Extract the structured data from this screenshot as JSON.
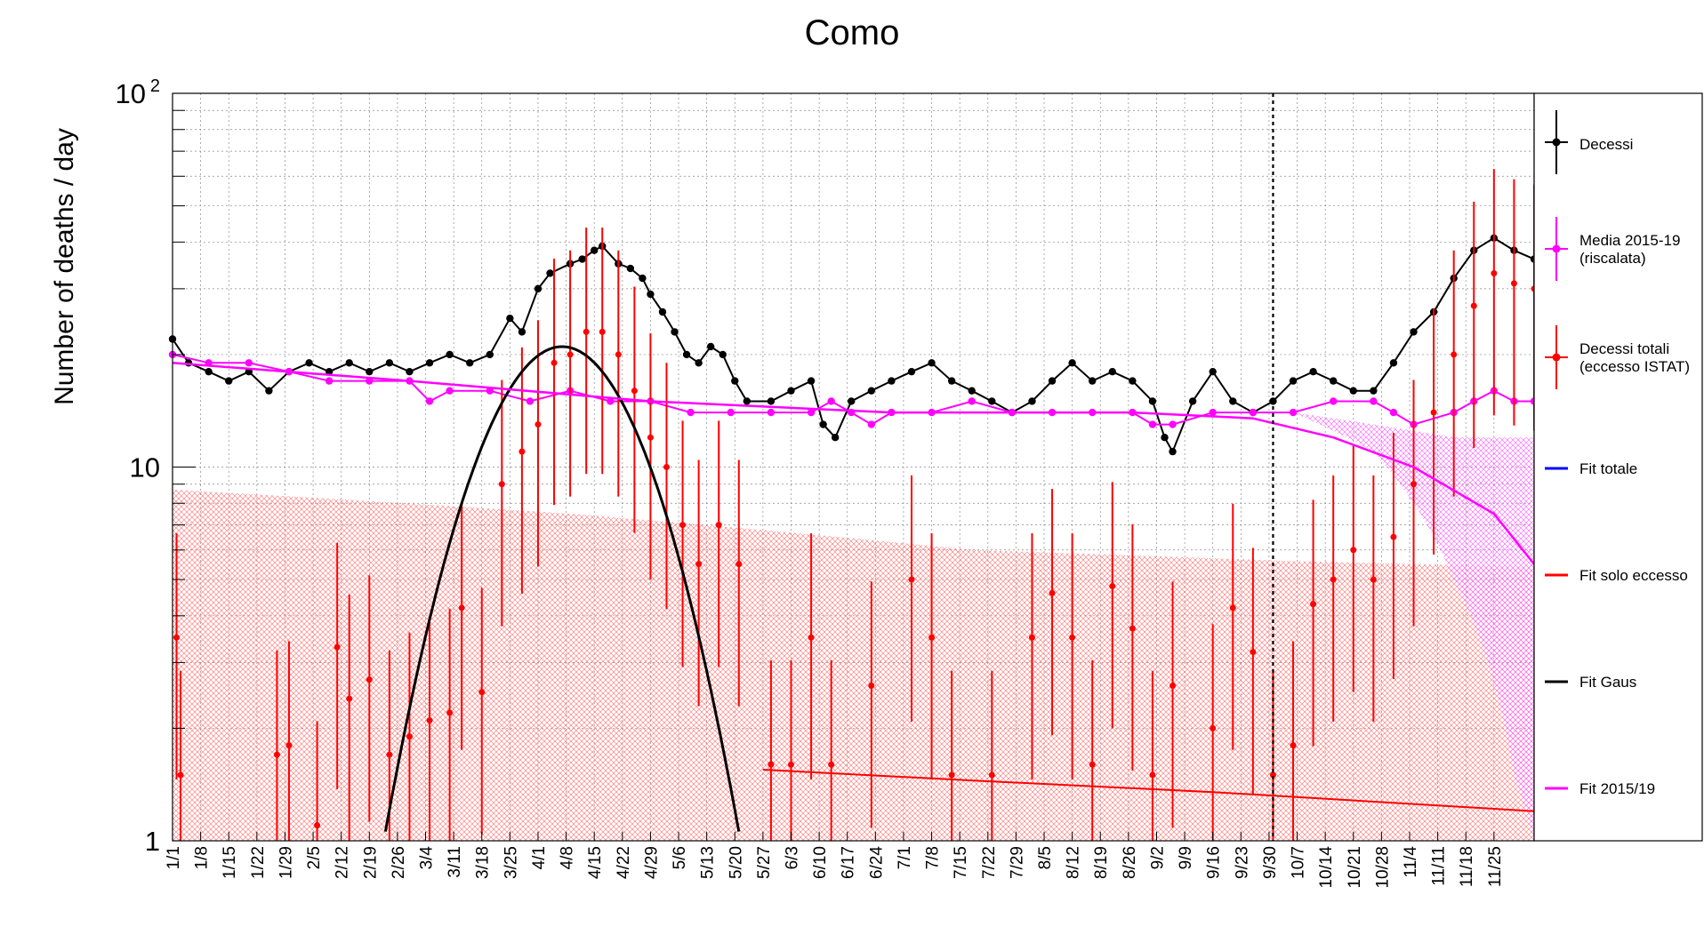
{
  "chart_data": {
    "type": "line",
    "title": "Como",
    "xlabel": "",
    "ylabel": "Number of deaths / day",
    "yscale": "log",
    "ylim": [
      1,
      100
    ],
    "y_ticks": [
      {
        "value": 1,
        "label": "1"
      },
      {
        "value": 10,
        "label": "10"
      },
      {
        "value": 100,
        "label": "10",
        "exp": "2"
      }
    ],
    "x_start": "1/1",
    "x_end": "12/1",
    "x_ticks": [
      "1/1",
      "1/8",
      "1/15",
      "1/22",
      "1/29",
      "2/5",
      "2/12",
      "2/19",
      "2/26",
      "3/4",
      "3/11",
      "3/18",
      "3/25",
      "4/1",
      "4/8",
      "4/15",
      "4/22",
      "4/29",
      "5/6",
      "5/13",
      "5/20",
      "5/27",
      "6/3",
      "6/10",
      "6/17",
      "6/24",
      "7/1",
      "7/8",
      "7/15",
      "7/22",
      "7/29",
      "8/5",
      "8/12",
      "8/19",
      "8/26",
      "9/2",
      "9/9",
      "9/16",
      "9/23",
      "9/30",
      "10/7",
      "10/14",
      "10/21",
      "10/28",
      "11/4",
      "11/11",
      "11/18",
      "11/25"
    ],
    "grid": true,
    "vertical_marker": "10/1",
    "legend_position": "right",
    "legend": [
      {
        "label": "Decessi",
        "color": "#000000",
        "style": "marker"
      },
      {
        "label": "Media 2015-19",
        "label2": "(riscalata)",
        "color": "#ff00ff",
        "style": "marker"
      },
      {
        "label": "Decessi totali",
        "label2": "(eccesso ISTAT)",
        "color": "#ff0000",
        "style": "marker"
      },
      {
        "label": "Fit totale",
        "color": "#0000ff",
        "style": "line"
      },
      {
        "label": "Fit solo eccesso",
        "color": "#ff0000",
        "style": "line"
      },
      {
        "label": "Fit Gaus",
        "color": "#000000",
        "style": "line"
      },
      {
        "label": "Fit 2015/19",
        "color": "#ff00ff",
        "style": "line"
      }
    ],
    "series": [
      {
        "name": "Decessi",
        "color": "#000000",
        "points": [
          [
            1,
            22
          ],
          [
            5,
            19
          ],
          [
            10,
            18
          ],
          [
            15,
            17
          ],
          [
            20,
            18
          ],
          [
            25,
            16
          ],
          [
            30,
            18
          ],
          [
            35,
            19
          ],
          [
            40,
            18
          ],
          [
            45,
            19
          ],
          [
            50,
            18
          ],
          [
            55,
            19
          ],
          [
            60,
            18
          ],
          [
            65,
            19
          ],
          [
            70,
            20
          ],
          [
            75,
            19
          ],
          [
            80,
            20
          ],
          [
            85,
            25
          ],
          [
            88,
            23
          ],
          [
            92,
            30
          ],
          [
            95,
            33
          ],
          [
            100,
            35
          ],
          [
            103,
            36
          ],
          [
            106,
            38
          ],
          [
            108,
            39
          ],
          [
            112,
            35
          ],
          [
            115,
            34
          ],
          [
            118,
            32
          ],
          [
            120,
            29
          ],
          [
            123,
            26
          ],
          [
            126,
            23
          ],
          [
            129,
            20
          ],
          [
            132,
            19
          ],
          [
            135,
            21
          ],
          [
            138,
            20
          ],
          [
            141,
            17
          ],
          [
            144,
            15
          ],
          [
            150,
            15
          ],
          [
            155,
            16
          ],
          [
            160,
            17
          ],
          [
            163,
            13
          ],
          [
            166,
            12
          ],
          [
            170,
            15
          ],
          [
            175,
            16
          ],
          [
            180,
            17
          ],
          [
            185,
            18
          ],
          [
            190,
            19
          ],
          [
            195,
            17
          ],
          [
            200,
            16
          ],
          [
            205,
            15
          ],
          [
            210,
            14
          ],
          [
            215,
            15
          ],
          [
            220,
            17
          ],
          [
            225,
            19
          ],
          [
            230,
            17
          ],
          [
            235,
            18
          ],
          [
            240,
            17
          ],
          [
            245,
            15
          ],
          [
            248,
            12
          ],
          [
            250,
            11
          ],
          [
            255,
            15
          ],
          [
            260,
            18
          ],
          [
            265,
            15
          ],
          [
            270,
            14
          ],
          [
            275,
            15
          ],
          [
            280,
            17
          ],
          [
            285,
            18
          ],
          [
            290,
            17
          ],
          [
            295,
            16
          ],
          [
            300,
            16
          ],
          [
            305,
            19
          ],
          [
            310,
            23
          ],
          [
            315,
            26
          ],
          [
            320,
            32
          ],
          [
            325,
            38
          ],
          [
            330,
            41
          ],
          [
            335,
            38
          ],
          [
            340,
            36
          ]
        ]
      },
      {
        "name": "Media 2015-19",
        "color": "#ff00ff",
        "points": [
          [
            1,
            20
          ],
          [
            10,
            19
          ],
          [
            20,
            19
          ],
          [
            30,
            18
          ],
          [
            40,
            17
          ],
          [
            50,
            17
          ],
          [
            60,
            17
          ],
          [
            65,
            15
          ],
          [
            70,
            16
          ],
          [
            80,
            16
          ],
          [
            90,
            15
          ],
          [
            100,
            16
          ],
          [
            110,
            15
          ],
          [
            120,
            15
          ],
          [
            130,
            14
          ],
          [
            140,
            14
          ],
          [
            150,
            14
          ],
          [
            160,
            14
          ],
          [
            165,
            15
          ],
          [
            170,
            14
          ],
          [
            175,
            13
          ],
          [
            180,
            14
          ],
          [
            190,
            14
          ],
          [
            200,
            15
          ],
          [
            210,
            14
          ],
          [
            220,
            14
          ],
          [
            230,
            14
          ],
          [
            240,
            14
          ],
          [
            245,
            13
          ],
          [
            250,
            13
          ],
          [
            260,
            14
          ],
          [
            270,
            14
          ],
          [
            280,
            14
          ],
          [
            290,
            15
          ],
          [
            300,
            15
          ],
          [
            305,
            14
          ],
          [
            310,
            13
          ],
          [
            320,
            14
          ],
          [
            325,
            15
          ],
          [
            330,
            16
          ],
          [
            335,
            15
          ],
          [
            340,
            15
          ]
        ]
      },
      {
        "name": "Decessi totali",
        "color": "#ff0000",
        "points": [
          [
            2,
            3.5
          ],
          [
            3,
            1.5
          ],
          [
            27,
            1.7
          ],
          [
            30,
            1.8
          ],
          [
            37,
            1.1
          ],
          [
            42,
            3.3
          ],
          [
            45,
            2.4
          ],
          [
            50,
            2.7
          ],
          [
            55,
            1.7
          ],
          [
            60,
            1.9
          ],
          [
            65,
            2.1
          ],
          [
            70,
            2.2
          ],
          [
            73,
            4.2
          ],
          [
            78,
            2.5
          ],
          [
            83,
            9
          ],
          [
            88,
            11
          ],
          [
            92,
            13
          ],
          [
            96,
            19
          ],
          [
            100,
            20
          ],
          [
            104,
            23
          ],
          [
            108,
            23
          ],
          [
            112,
            20
          ],
          [
            116,
            16
          ],
          [
            120,
            12
          ],
          [
            124,
            10
          ],
          [
            128,
            7
          ],
          [
            132,
            5.5
          ],
          [
            137,
            7
          ],
          [
            142,
            5.5
          ],
          [
            150,
            1.6
          ],
          [
            155,
            1.6
          ],
          [
            160,
            3.5
          ],
          [
            165,
            1.6
          ],
          [
            175,
            2.6
          ],
          [
            185,
            5
          ],
          [
            190,
            3.5
          ],
          [
            195,
            1.5
          ],
          [
            205,
            1.5
          ],
          [
            215,
            3.5
          ],
          [
            220,
            4.6
          ],
          [
            225,
            3.5
          ],
          [
            230,
            1.6
          ],
          [
            235,
            4.8
          ],
          [
            240,
            3.7
          ],
          [
            245,
            1.5
          ],
          [
            250,
            2.6
          ],
          [
            260,
            2
          ],
          [
            265,
            4.2
          ],
          [
            270,
            3.2
          ],
          [
            275,
            1.5
          ],
          [
            280,
            1.8
          ],
          [
            285,
            4.3
          ],
          [
            290,
            5
          ],
          [
            295,
            6
          ],
          [
            300,
            5
          ],
          [
            305,
            6.5
          ],
          [
            310,
            9
          ],
          [
            315,
            14
          ],
          [
            320,
            20
          ],
          [
            325,
            27
          ],
          [
            330,
            33
          ],
          [
            335,
            31
          ],
          [
            340,
            30
          ]
        ]
      },
      {
        "name": "Fit Gaus",
        "color": "#000000",
        "curve": "gaussian",
        "amplitude": 21,
        "center_day": 98,
        "sigma_days": 18
      },
      {
        "name": "Fit solo eccesso",
        "color": "#ff0000",
        "points": [
          [
            148,
            1.55
          ],
          [
            200,
            1.45
          ],
          [
            260,
            1.35
          ],
          [
            340,
            1.2
          ]
        ]
      },
      {
        "name": "Fit 2015/19",
        "color": "#ff00ff",
        "points": [
          [
            1,
            19
          ],
          [
            60,
            17
          ],
          [
            120,
            15
          ],
          [
            180,
            14
          ],
          [
            240,
            14
          ],
          [
            270,
            13.5
          ],
          [
            290,
            12
          ],
          [
            310,
            10
          ],
          [
            330,
            7.5
          ],
          [
            340,
            5.5
          ]
        ]
      }
    ],
    "bands": [
      {
        "name": "Decessi totali band",
        "color": "#ff0000",
        "upper": [
          [
            1,
            8.7
          ],
          [
            100,
            7.5
          ],
          [
            200,
            6
          ],
          [
            280,
            5.6
          ],
          [
            340,
            5.4
          ]
        ]
      },
      {
        "name": "Media 2015-19 band",
        "color": "#ff00ff",
        "upper": [
          [
            280,
            14
          ],
          [
            300,
            13
          ],
          [
            320,
            12
          ],
          [
            340,
            12
          ]
        ],
        "lower": [
          [
            280,
            14
          ],
          [
            300,
            11
          ],
          [
            320,
            5
          ],
          [
            335,
            1.5
          ],
          [
            340,
            1
          ]
        ]
      }
    ]
  }
}
